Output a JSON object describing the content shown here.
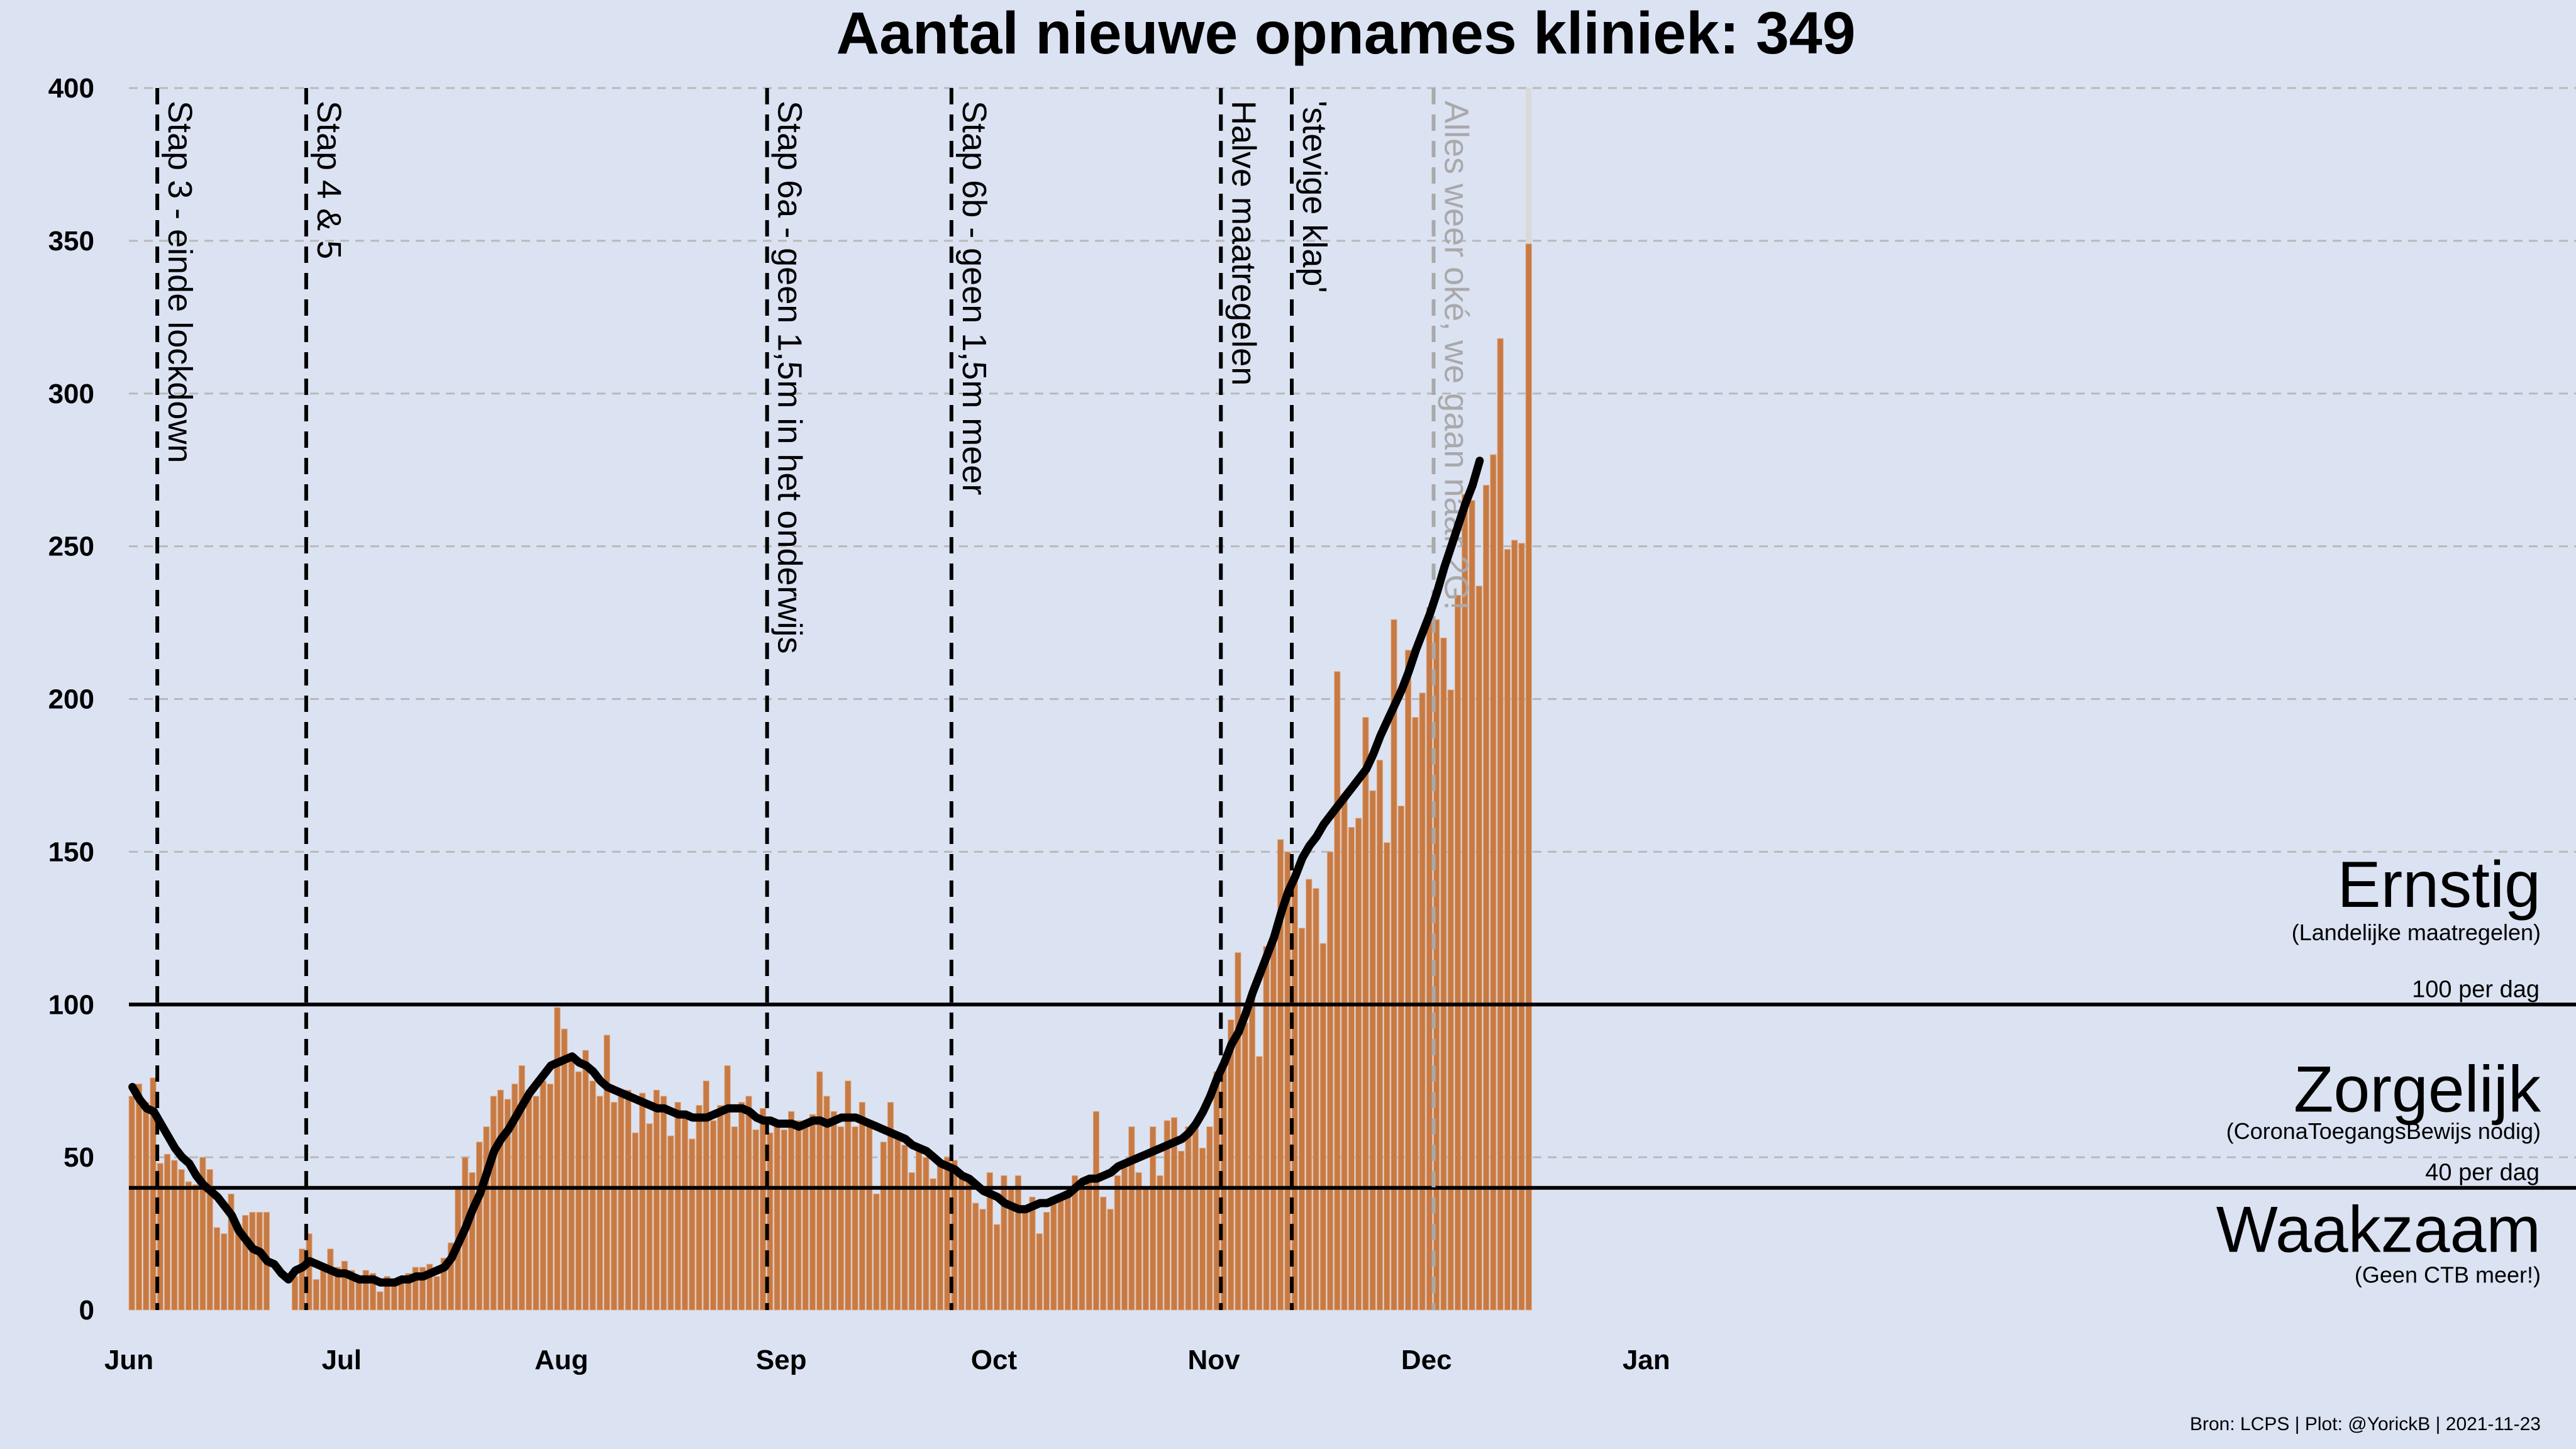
{
  "chart_data": {
    "type": "bar",
    "title": "Aantal nieuwe opnames kliniek:  349",
    "xlabel": "",
    "ylabel": "",
    "x_range": [
      "2021-06-01",
      "2022-01-31"
    ],
    "ylim": [
      0,
      400
    ],
    "y_ticks": [
      0,
      50,
      100,
      150,
      200,
      250,
      300,
      350,
      400
    ],
    "x_ticks": [
      {
        "date": "2021-06-01",
        "label": "Jun"
      },
      {
        "date": "2021-07-01",
        "label": "Jul"
      },
      {
        "date": "2021-08-01",
        "label": "Aug"
      },
      {
        "date": "2021-09-01",
        "label": "Sep"
      },
      {
        "date": "2021-10-01",
        "label": "Oct"
      },
      {
        "date": "2021-11-01",
        "label": "Nov"
      },
      {
        "date": "2021-12-01",
        "label": "Dec"
      },
      {
        "date": "2022-01-01",
        "label": "Jan"
      }
    ],
    "grid": "horizontal dashed",
    "bar_color": "#c77a43",
    "line_color": "#000000",
    "bars_start_date": "2021-06-01",
    "bars": [
      70,
      74,
      68,
      76,
      48,
      51,
      49,
      46,
      42,
      41,
      50,
      46,
      27,
      25,
      38,
      28,
      31,
      32,
      32,
      32,
      0,
      0,
      0,
      11,
      20,
      25,
      10,
      15,
      20,
      14,
      16,
      13,
      9,
      13,
      12,
      6,
      11,
      10,
      9,
      12,
      14,
      14,
      15,
      11,
      17,
      22,
      40,
      50,
      45,
      55,
      60,
      70,
      72,
      69,
      74,
      80,
      72,
      70,
      75,
      74,
      99,
      92,
      82,
      78,
      85,
      75,
      70,
      90,
      68,
      70,
      72,
      58,
      71,
      61,
      72,
      70,
      57,
      68,
      64,
      56,
      67,
      75,
      62,
      67,
      80,
      60,
      68,
      70,
      59,
      66,
      58,
      62,
      59,
      65,
      62,
      62,
      64,
      78,
      70,
      65,
      60,
      75,
      60,
      68,
      62,
      38,
      55,
      68,
      56,
      54,
      45,
      53,
      50,
      43,
      48,
      50,
      49,
      43,
      44,
      35,
      33,
      45,
      28,
      44,
      40,
      44,
      32,
      37,
      25,
      32,
      37,
      37,
      39,
      44,
      40,
      42,
      65,
      37,
      33,
      44,
      47,
      60,
      45,
      40,
      60,
      44,
      62,
      63,
      52,
      60,
      60,
      53,
      60,
      78,
      82,
      95,
      117,
      94,
      102,
      83,
      119,
      122,
      154,
      150,
      143,
      125,
      141,
      138,
      120,
      150,
      209,
      169,
      158,
      161,
      194,
      170,
      180,
      153,
      226,
      165,
      216,
      194,
      202,
      230,
      226,
      220,
      203,
      234,
      267,
      265,
      237,
      270,
      280,
      318,
      249,
      252,
      251,
      349
    ],
    "partial_last_bar_top": 400,
    "rolling_avg": [
      73,
      69,
      66,
      65,
      61,
      57,
      53,
      50,
      48,
      44,
      41,
      39,
      37,
      34,
      31,
      26,
      23,
      20,
      19,
      16,
      15,
      12,
      10,
      13,
      14,
      16,
      15,
      14,
      13,
      12,
      12,
      11,
      10,
      10,
      10,
      9,
      9,
      9,
      10,
      10,
      11,
      11,
      12,
      13,
      14,
      17,
      22,
      27,
      33,
      38,
      45,
      52,
      56,
      59,
      63,
      67,
      71,
      74,
      77,
      80,
      81,
      82,
      83,
      81,
      80,
      78,
      75,
      73,
      72,
      71,
      70,
      69,
      68,
      67,
      66,
      66,
      65,
      64,
      64,
      63,
      63,
      63,
      64,
      65,
      66,
      66,
      66,
      65,
      63,
      62,
      62,
      61,
      61,
      61,
      60,
      61,
      62,
      62,
      61,
      62,
      63,
      63,
      63,
      62,
      61,
      60,
      59,
      58,
      57,
      56,
      54,
      53,
      52,
      50,
      48,
      47,
      46,
      44,
      43,
      41,
      39,
      38,
      37,
      35,
      34,
      33,
      33,
      34,
      35,
      35,
      36,
      37,
      38,
      40,
      42,
      43,
      43,
      44,
      45,
      47,
      48,
      49,
      50,
      51,
      52,
      53,
      54,
      55,
      56,
      58,
      61,
      65,
      70,
      76,
      81,
      87,
      91,
      97,
      104,
      110,
      116,
      122,
      130,
      137,
      142,
      148,
      152,
      155,
      159,
      162,
      165,
      168,
      171,
      174,
      177,
      182,
      188,
      193,
      198,
      203,
      209,
      216,
      222,
      228,
      235,
      243,
      250,
      257,
      264,
      270,
      278
    ],
    "thresholds": [
      {
        "value": 100,
        "label": "100 per dag"
      },
      {
        "value": 40,
        "label": "40 per dag"
      }
    ],
    "zones": [
      {
        "name": "Ernstig",
        "sub": "(Landelijke maatregelen)",
        "y": 132,
        "sub_y": 121
      },
      {
        "name": "Zorgelijk",
        "sub": "(CoronaToegangsBewijs nodig)",
        "y": 65,
        "sub_y": 56
      },
      {
        "name": "Waakzaam",
        "sub": "(Geen CTB meer!)",
        "y": 19,
        "sub_y": 9
      }
    ],
    "events": [
      {
        "date": "2021-06-05",
        "label": "Stap 3 - einde lockdown",
        "color": "#000000"
      },
      {
        "date": "2021-06-26",
        "label": "Stap 4 & 5",
        "color": "#000000"
      },
      {
        "date": "2021-08-30",
        "label": "Stap 6a - geen 1,5m in het onderwijs",
        "color": "#000000"
      },
      {
        "date": "2021-09-25",
        "label": "Stap 6b - geen 1,5m meer",
        "color": "#000000"
      },
      {
        "date": "2021-11-02",
        "label": "Halve maatregelen",
        "color": "#000000"
      },
      {
        "date": "2021-11-12",
        "label": "'stevige klap'",
        "color": "#000000"
      },
      {
        "date": "2021-12-02",
        "label": "Alles weer oké, we gaan naar 2G!",
        "color": "#a9a9a9"
      }
    ],
    "source": "Bron: LCPS | Plot: @YorickB |  2021-11-23"
  }
}
